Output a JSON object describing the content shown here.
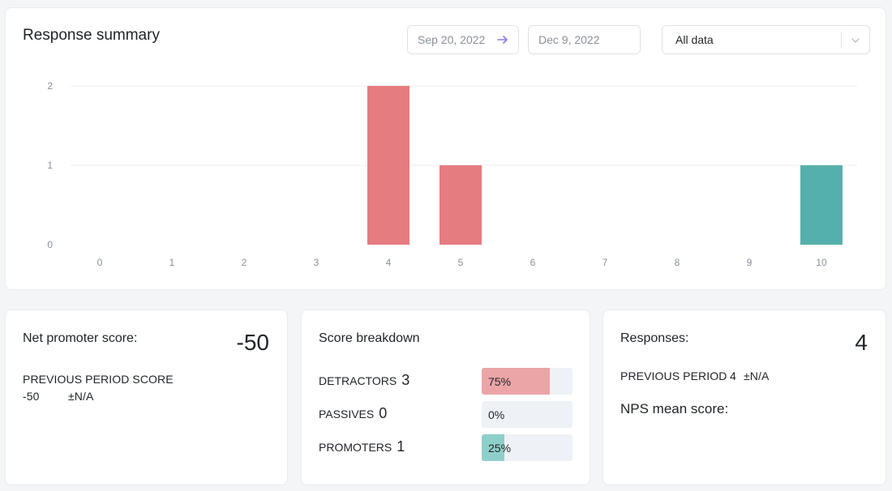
{
  "summary": {
    "title": "Response summary",
    "date_start": "Sep 20, 2022",
    "date_end": "Dec 9, 2022",
    "filter_selected": "All data"
  },
  "colors": {
    "detractor": "#e57c80",
    "promoter": "#54b0aa",
    "accent_arrow": "#8c7ae6",
    "gridline": "#eceef1",
    "axis_text": "#8a8f98"
  },
  "chart_data": {
    "type": "bar",
    "title": "Response summary",
    "xlabel": "",
    "ylabel": "",
    "categories": [
      "0",
      "1",
      "2",
      "3",
      "4",
      "5",
      "6",
      "7",
      "8",
      "9",
      "10"
    ],
    "values": [
      0,
      0,
      0,
      0,
      2,
      1,
      0,
      0,
      0,
      0,
      1
    ],
    "bar_groups": [
      "detractor",
      "detractor",
      "detractor",
      "detractor",
      "detractor",
      "detractor",
      "detractor",
      "passive",
      "passive",
      "promoter",
      "promoter"
    ],
    "ylim": [
      0,
      2
    ],
    "yticks": [
      "0",
      "1",
      "2"
    ],
    "grid": true
  },
  "nps": {
    "label": "Net promoter score:",
    "value": "-50",
    "previous_label": "PREVIOUS PERIOD SCORE",
    "previous_value": "-50",
    "previous_change": "±N/A"
  },
  "breakdown": {
    "title": "Score breakdown",
    "rows": [
      {
        "label": "DETRACTORS",
        "count": "3",
        "percent_text": "75%",
        "percent": 75,
        "color": "#eba5a7"
      },
      {
        "label": "PASSIVES",
        "count": "0",
        "percent_text": "0%",
        "percent": 0,
        "color": "#d6dbe2"
      },
      {
        "label": "PROMOTERS",
        "count": "1",
        "percent_text": "25%",
        "percent": 25,
        "color": "#8fcfc9"
      }
    ]
  },
  "responses": {
    "label": "Responses:",
    "value": "4",
    "previous_label": "PREVIOUS PERIOD",
    "previous_value": "4",
    "previous_change": "±N/A",
    "mean_label": "NPS mean score:"
  }
}
